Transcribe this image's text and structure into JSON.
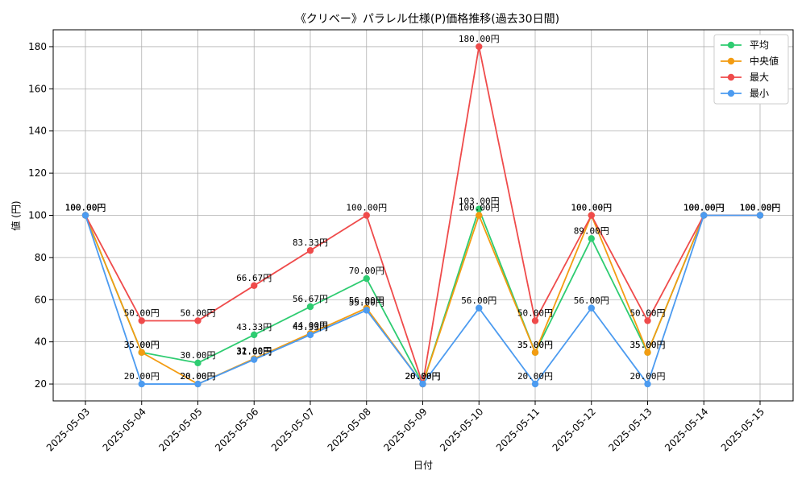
{
  "chart_data": {
    "type": "line",
    "title": "《クリベー》パラレル仕様(P)価格推移(過去30日間)",
    "xlabel": "日付",
    "ylabel": "値 (円)",
    "ylim": [
      12,
      188
    ],
    "yticks": [
      20,
      40,
      60,
      80,
      100,
      120,
      140,
      160,
      180
    ],
    "grid": true,
    "legend_position": "top-right",
    "categories": [
      "2025-05-03",
      "2025-05-04",
      "2025-05-05",
      "2025-05-06",
      "2025-05-07",
      "2025-05-08",
      "2025-05-09",
      "2025-05-10",
      "2025-05-11",
      "2025-05-12",
      "2025-05-13",
      "2025-05-14",
      "2025-05-15"
    ],
    "label_suffix": "円",
    "series": [
      {
        "name": "平均",
        "color": "#2ecc71",
        "values": [
          100,
          35,
          30,
          43.33,
          56.67,
          70,
          20,
          103,
          35,
          89,
          35,
          100,
          100
        ]
      },
      {
        "name": "中央値",
        "color": "#f39c12",
        "values": [
          100,
          35,
          20,
          32,
          44,
          56,
          20,
          100,
          35,
          100,
          35,
          100,
          100
        ]
      },
      {
        "name": "最大",
        "color": "#ef4b4b",
        "values": [
          100,
          50,
          50,
          66.67,
          83.33,
          100,
          20,
          180,
          50,
          100,
          50,
          100,
          100
        ]
      },
      {
        "name": "最小",
        "color": "#4c9bf0",
        "values": [
          100,
          20,
          20,
          31.6,
          43.33,
          55,
          20,
          56,
          20,
          56,
          20,
          100,
          100
        ]
      }
    ]
  }
}
